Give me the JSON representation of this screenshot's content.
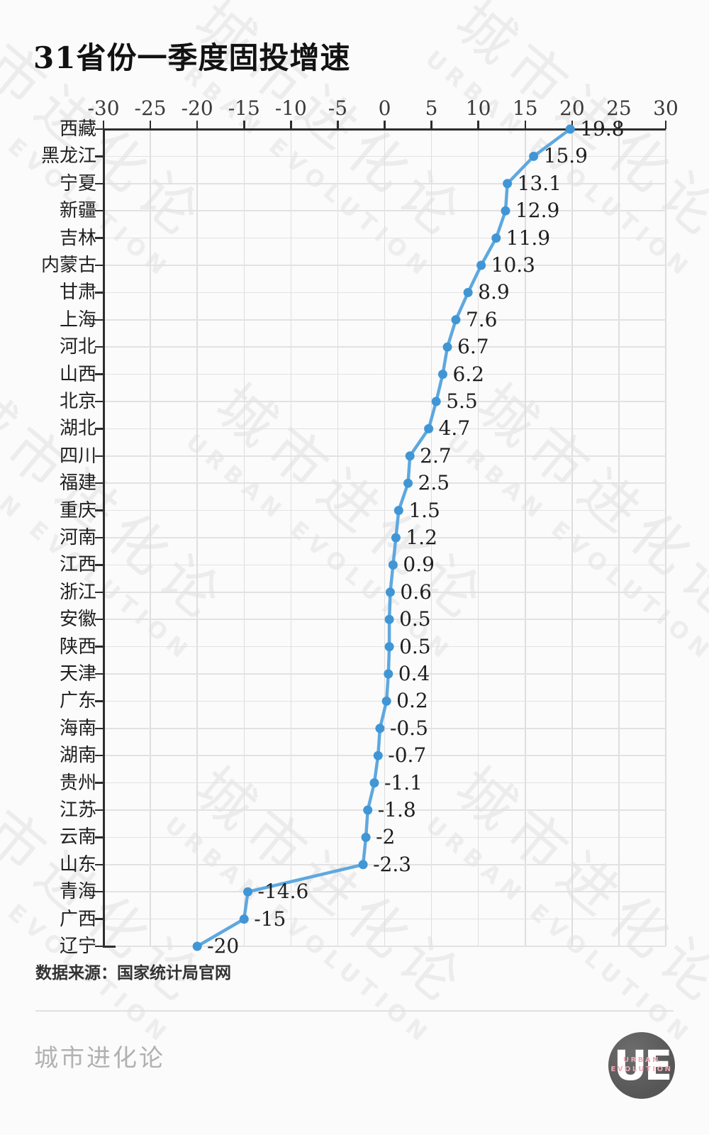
{
  "title": "31省份一季度固投增速",
  "source_note": "数据来源：国家统计局官网",
  "watermark": {
    "cn": "城市进化论",
    "en": "URBAN EVOLUTION"
  },
  "footer": {
    "brand": "城市进化论",
    "logo_initials": "UE",
    "logo_line1": "URBAN",
    "logo_line2": "EVOLUTION"
  },
  "colors": {
    "line": "#5ea8df",
    "dot": "#4096d5",
    "axis": "#2d2d2d",
    "grid_v": "#dedede",
    "grid_h": "#e2e2e2",
    "divider": "#e0e0e0",
    "logo_bg": "#5e5e5e",
    "logo_accent": "#edaab8"
  },
  "chart_data": {
    "type": "line",
    "orientation": "horizontal",
    "title": "31省份一季度固投增速",
    "xlabel": "",
    "ylabel": "",
    "grid": true,
    "legend": false,
    "xlim": [
      -30,
      30
    ],
    "x_ticks": [
      -30,
      -25,
      -20,
      -15,
      -10,
      -5,
      0,
      5,
      10,
      15,
      20,
      25,
      30
    ],
    "categories": [
      "西藏",
      "黑龙江",
      "宁夏",
      "新疆",
      "吉林",
      "内蒙古",
      "甘肃",
      "上海",
      "河北",
      "山西",
      "北京",
      "湖北",
      "四川",
      "福建",
      "重庆",
      "河南",
      "江西",
      "浙江",
      "安徽",
      "陕西",
      "天津",
      "广东",
      "海南",
      "湖南",
      "贵州",
      "江苏",
      "云南",
      "山东",
      "青海",
      "广西",
      "辽宁"
    ],
    "values": [
      19.8,
      15.9,
      13.1,
      12.9,
      11.9,
      10.3,
      8.9,
      7.6,
      6.7,
      6.2,
      5.5,
      4.7,
      2.7,
      2.5,
      1.5,
      1.2,
      0.9,
      0.6,
      0.5,
      0.5,
      0.4,
      0.2,
      -0.5,
      -0.7,
      -1.1,
      -1.8,
      -2,
      -2.3,
      -14.6,
      -15,
      -20
    ]
  }
}
